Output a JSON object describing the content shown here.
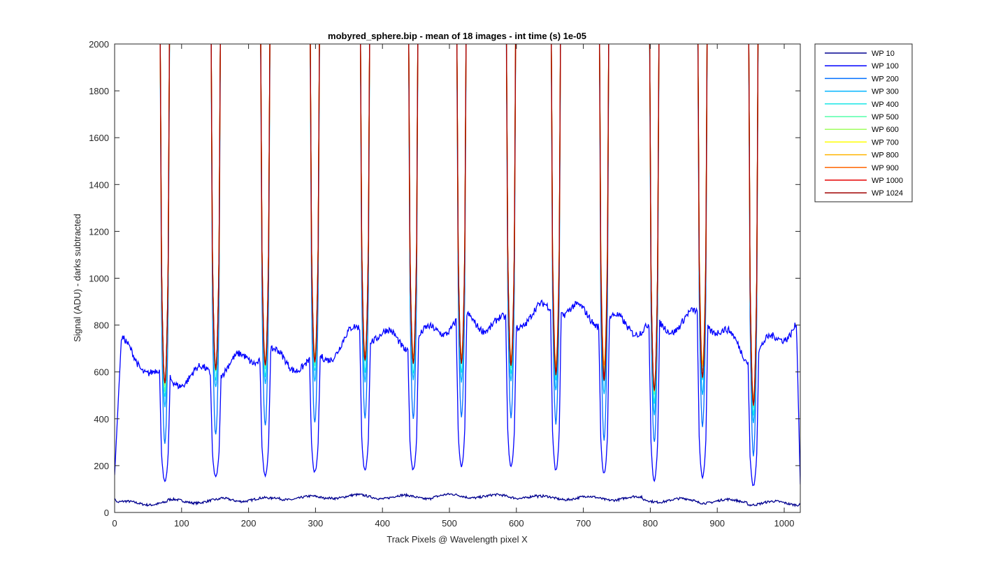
{
  "chart_data": {
    "type": "line",
    "title": "mobyred_sphere.bip - mean of 18 images - int time (s) 1e-05",
    "xlabel": "Track Pixels @ Wavelength pixel X",
    "ylabel": "Signal (ADU) - darks subtracted",
    "xlim": [
      0,
      1024
    ],
    "ylim": [
      0,
      2000
    ],
    "x_ticks": [
      0,
      100,
      200,
      300,
      400,
      500,
      600,
      700,
      800,
      900,
      1000
    ],
    "y_ticks": [
      0,
      200,
      400,
      600,
      800,
      1000,
      1200,
      1400,
      1600,
      1800,
      2000
    ],
    "grid": false,
    "legend_position": "outside-top-right",
    "profile": {
      "gaps_center_x": [
        75,
        151,
        225,
        299,
        374,
        446,
        518,
        592,
        659,
        731,
        806,
        878,
        954
      ],
      "gap_half_width": 5,
      "wall_half_width": 8,
      "base_level_wp10": [
        40,
        48,
        55,
        62,
        68,
        66,
        70,
        68,
        62,
        60,
        52,
        48,
        40
      ]
    },
    "series": [
      {
        "name": "WP 10",
        "color": "#00008f",
        "min_values": [
          40,
          48,
          55,
          62,
          68,
          66,
          70,
          68,
          62,
          60,
          52,
          48,
          40
        ],
        "background": [
          40,
          62,
          40
        ]
      },
      {
        "name": "WP 100",
        "color": "#0000ff",
        "min_values": [
          135,
          152,
          160,
          172,
          178,
          182,
          195,
          196,
          180,
          165,
          135,
          150,
          115
        ],
        "background": [
          740,
          560,
          600,
          680,
          620,
          780,
          720,
          820,
          800,
          880,
          820,
          780,
          840,
          660,
          820
        ]
      },
      {
        "name": "WP 200",
        "color": "#006fff",
        "min_values": [
          290,
          330,
          370,
          380,
          405,
          400,
          405,
          405,
          380,
          310,
          300,
          370,
          245
        ]
      },
      {
        "name": "WP 300",
        "color": "#00b4ff",
        "min_values": [
          450,
          530,
          550,
          560,
          560,
          565,
          560,
          560,
          520,
          500,
          420,
          500,
          380
        ]
      },
      {
        "name": "WP 400",
        "color": "#19e6e6",
        "min_values": [
          490,
          560,
          580,
          600,
          600,
          590,
          600,
          590,
          570,
          560,
          470,
          560,
          420
        ]
      },
      {
        "name": "WP 500",
        "color": "#55ffaa",
        "min_values": [
          520,
          600,
          610,
          630,
          640,
          630,
          630,
          620,
          600,
          600,
          500,
          600,
          450
        ]
      },
      {
        "name": "WP 600",
        "color": "#a0ff5f",
        "min_values": [
          540,
          620,
          630,
          650,
          660,
          650,
          650,
          640,
          620,
          620,
          520,
          620,
          470
        ]
      },
      {
        "name": "WP 700",
        "color": "#ffff00",
        "min_values": [
          550,
          610,
          640,
          660,
          670,
          660,
          660,
          650,
          630,
          630,
          530,
          630,
          480
        ]
      },
      {
        "name": "WP 800",
        "color": "#ffb400",
        "min_values": [
          555,
          612,
          645,
          665,
          672,
          662,
          662,
          652,
          632,
          632,
          530,
          632,
          480
        ]
      },
      {
        "name": "WP 900",
        "color": "#ff6400",
        "min_values": [
          550,
          615,
          630,
          645,
          655,
          640,
          640,
          630,
          600,
          580,
          520,
          580,
          460
        ]
      },
      {
        "name": "WP 1000",
        "color": "#e60000",
        "min_values": [
          550,
          615,
          630,
          645,
          655,
          640,
          640,
          630,
          600,
          580,
          520,
          580,
          460
        ]
      },
      {
        "name": "WP 1024",
        "color": "#a00000",
        "min_values": [
          550,
          610,
          630,
          645,
          650,
          640,
          640,
          625,
          590,
          560,
          520,
          580,
          460
        ]
      }
    ]
  }
}
